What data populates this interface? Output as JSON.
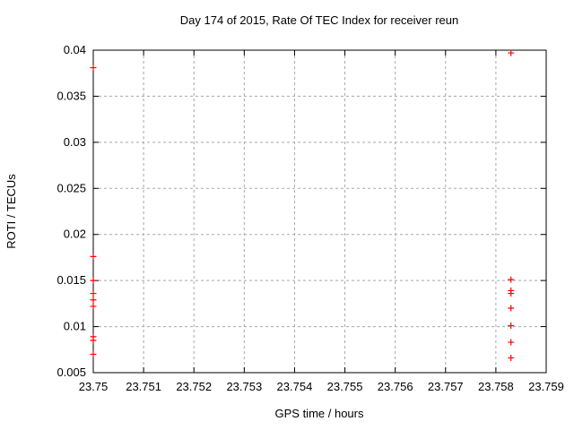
{
  "chart_data": {
    "type": "scatter",
    "title": "Day 174 of 2015, Rate Of TEC Index for receiver reun",
    "xlabel": "GPS time / hours",
    "ylabel": "ROTI / TECUs",
    "xlim": [
      23.75,
      23.759
    ],
    "ylim": [
      0.005,
      0.04
    ],
    "xtick_values": [
      23.75,
      23.751,
      23.752,
      23.753,
      23.754,
      23.755,
      23.756,
      23.757,
      23.758,
      23.759
    ],
    "xtick_labels": [
      "23.75",
      "23.751",
      "23.752",
      "23.753",
      "23.754",
      "23.755",
      "23.756",
      "23.757",
      "23.758",
      "23.759"
    ],
    "ytick_values": [
      0.005,
      0.01,
      0.015,
      0.02,
      0.025,
      0.03,
      0.035,
      0.04
    ],
    "ytick_labels": [
      "0.005",
      "0.01",
      "0.015",
      "0.02",
      "0.025",
      "0.03",
      "0.035",
      "0.04"
    ],
    "grid": true,
    "legend": "none",
    "colors": {
      "marker": "#ff0000",
      "grid": "#a8a8a8",
      "axis": "#000000",
      "background": "#ffffff"
    },
    "series": [
      {
        "name": "ROTI",
        "marker": "plus",
        "points": [
          [
            23.75,
            0.0381
          ],
          [
            23.75,
            0.0176
          ],
          [
            23.75,
            0.015
          ],
          [
            23.75,
            0.0136
          ],
          [
            23.75,
            0.0129
          ],
          [
            23.75,
            0.0122
          ],
          [
            23.75,
            0.0089
          ],
          [
            23.75,
            0.0085
          ],
          [
            23.75,
            0.007
          ],
          [
            23.7583,
            0.0397
          ],
          [
            23.7583,
            0.0151
          ],
          [
            23.7583,
            0.0139
          ],
          [
            23.7583,
            0.0136
          ],
          [
            23.7583,
            0.012
          ],
          [
            23.7583,
            0.0101
          ],
          [
            23.7583,
            0.0083
          ],
          [
            23.7583,
            0.0066
          ]
        ]
      }
    ]
  }
}
